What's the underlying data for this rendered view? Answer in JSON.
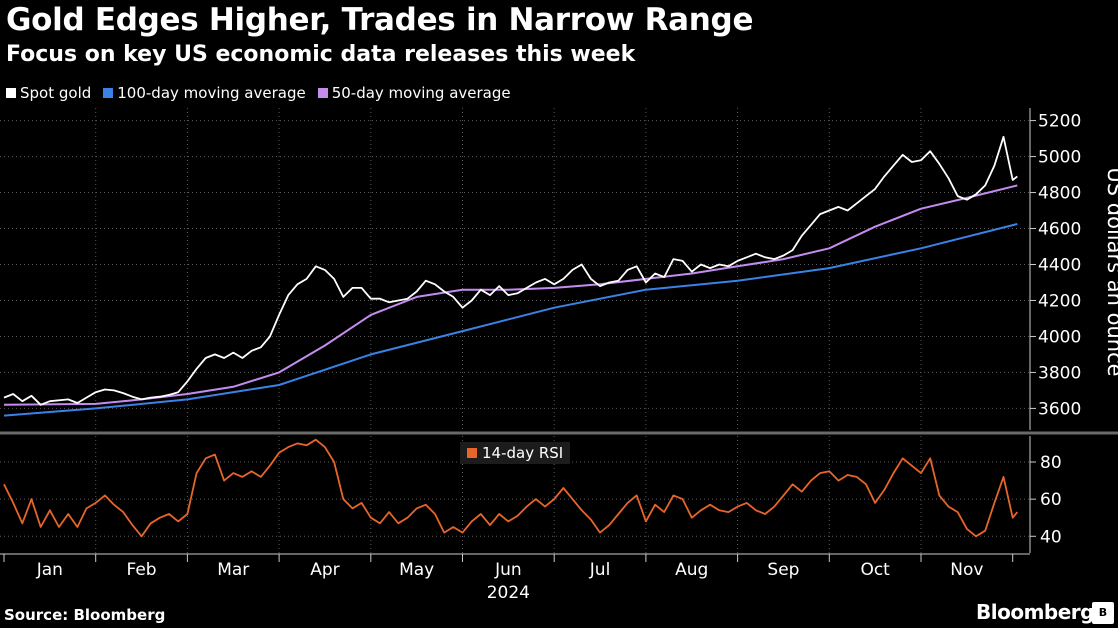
{
  "title": "Gold Edges Higher, Trades in Narrow Range",
  "subtitle": "Focus on key US economic data releases this week",
  "source": "Source: Bloomberg",
  "brand": "Bloomberg",
  "brand_mark": "B",
  "colors": {
    "spot": "#ffffff",
    "ma100": "#3b82e6",
    "ma50": "#c58cf0",
    "rsi": "#e8652a",
    "grid": "#5a5a5a",
    "divider": "#6a6a6a"
  },
  "chart_data": [
    {
      "type": "line",
      "ylabel": "US dollars an ounce",
      "ylim": [
        3480,
        5270
      ],
      "yticks": [
        3600,
        3800,
        4000,
        4200,
        4400,
        4600,
        4800,
        5000,
        5200
      ],
      "xlim": [
        0,
        11.05
      ],
      "xticks": [
        "Jan",
        "Feb",
        "Mar",
        "Apr",
        "May",
        "Jun",
        "Jul",
        "Aug",
        "Sep",
        "Oct",
        "Nov"
      ],
      "xlabel": "2024",
      "grid": true,
      "legend_position": "top-left",
      "series": [
        {
          "name": "Spot gold",
          "points": [
            [
              0.0,
              3660
            ],
            [
              0.1,
              3680
            ],
            [
              0.2,
              3640
            ],
            [
              0.3,
              3670
            ],
            [
              0.4,
              3620
            ],
            [
              0.5,
              3640
            ],
            [
              0.7,
              3650
            ],
            [
              0.8,
              3630
            ],
            [
              0.9,
              3660
            ],
            [
              1.0,
              3690
            ],
            [
              1.1,
              3705
            ],
            [
              1.2,
              3700
            ],
            [
              1.3,
              3685
            ],
            [
              1.4,
              3665
            ],
            [
              1.5,
              3650
            ],
            [
              1.6,
              3660
            ],
            [
              1.7,
              3665
            ],
            [
              1.8,
              3675
            ],
            [
              1.9,
              3690
            ],
            [
              2.0,
              3750
            ],
            [
              2.1,
              3820
            ],
            [
              2.2,
              3880
            ],
            [
              2.3,
              3900
            ],
            [
              2.4,
              3880
            ],
            [
              2.5,
              3910
            ],
            [
              2.6,
              3880
            ],
            [
              2.7,
              3920
            ],
            [
              2.8,
              3940
            ],
            [
              2.9,
              4000
            ],
            [
              3.0,
              4120
            ],
            [
              3.1,
              4230
            ],
            [
              3.2,
              4290
            ],
            [
              3.3,
              4320
            ],
            [
              3.4,
              4390
            ],
            [
              3.5,
              4370
            ],
            [
              3.6,
              4320
            ],
            [
              3.7,
              4220
            ],
            [
              3.8,
              4270
            ],
            [
              3.9,
              4270
            ],
            [
              4.0,
              4210
            ],
            [
              4.1,
              4210
            ],
            [
              4.2,
              4190
            ],
            [
              4.3,
              4200
            ],
            [
              4.4,
              4210
            ],
            [
              4.5,
              4250
            ],
            [
              4.6,
              4310
            ],
            [
              4.7,
              4290
            ],
            [
              4.8,
              4250
            ],
            [
              4.9,
              4220
            ],
            [
              5.0,
              4160
            ],
            [
              5.1,
              4200
            ],
            [
              5.2,
              4260
            ],
            [
              5.3,
              4230
            ],
            [
              5.4,
              4280
            ],
            [
              5.5,
              4230
            ],
            [
              5.6,
              4240
            ],
            [
              5.7,
              4270
            ],
            [
              5.8,
              4300
            ],
            [
              5.9,
              4320
            ],
            [
              6.0,
              4290
            ],
            [
              6.1,
              4320
            ],
            [
              6.2,
              4370
            ],
            [
              6.3,
              4400
            ],
            [
              6.4,
              4320
            ],
            [
              6.5,
              4280
            ],
            [
              6.6,
              4300
            ],
            [
              6.7,
              4310
            ],
            [
              6.8,
              4370
            ],
            [
              6.9,
              4390
            ],
            [
              7.0,
              4300
            ],
            [
              7.1,
              4350
            ],
            [
              7.2,
              4330
            ],
            [
              7.3,
              4430
            ],
            [
              7.4,
              4420
            ],
            [
              7.5,
              4360
            ],
            [
              7.6,
              4400
            ],
            [
              7.7,
              4380
            ],
            [
              7.8,
              4400
            ],
            [
              7.9,
              4390
            ],
            [
              8.0,
              4420
            ],
            [
              8.1,
              4440
            ],
            [
              8.2,
              4460
            ],
            [
              8.3,
              4440
            ],
            [
              8.4,
              4430
            ],
            [
              8.5,
              4450
            ],
            [
              8.6,
              4480
            ],
            [
              8.7,
              4560
            ],
            [
              8.8,
              4620
            ],
            [
              8.9,
              4680
            ],
            [
              9.0,
              4700
            ],
            [
              9.1,
              4720
            ],
            [
              9.2,
              4700
            ],
            [
              9.3,
              4740
            ],
            [
              9.4,
              4780
            ],
            [
              9.5,
              4820
            ],
            [
              9.6,
              4890
            ],
            [
              9.7,
              4950
            ],
            [
              9.8,
              5010
            ],
            [
              9.9,
              4970
            ],
            [
              10.0,
              4980
            ],
            [
              10.1,
              5030
            ],
            [
              10.2,
              4960
            ],
            [
              10.3,
              4880
            ],
            [
              10.4,
              4780
            ],
            [
              10.5,
              4760
            ],
            [
              10.6,
              4790
            ],
            [
              10.7,
              4840
            ],
            [
              10.8,
              4950
            ],
            [
              10.9,
              5110
            ],
            [
              11.0,
              4870
            ],
            [
              11.05,
              4890
            ]
          ]
        },
        {
          "name": "100-day moving average",
          "points": [
            [
              0.0,
              3560
            ],
            [
              1.0,
              3600
            ],
            [
              2.0,
              3650
            ],
            [
              3.0,
              3730
            ],
            [
              4.0,
              3900
            ],
            [
              5.0,
              4030
            ],
            [
              6.0,
              4160
            ],
            [
              7.0,
              4260
            ],
            [
              8.0,
              4310
            ],
            [
              9.0,
              4380
            ],
            [
              10.0,
              4490
            ],
            [
              11.05,
              4625
            ]
          ]
        },
        {
          "name": "50-day moving average",
          "points": [
            [
              0.0,
              3620
            ],
            [
              1.0,
              3625
            ],
            [
              1.5,
              3650
            ],
            [
              2.0,
              3680
            ],
            [
              2.5,
              3720
            ],
            [
              3.0,
              3800
            ],
            [
              3.5,
              3950
            ],
            [
              4.0,
              4120
            ],
            [
              4.5,
              4220
            ],
            [
              5.0,
              4260
            ],
            [
              5.5,
              4260
            ],
            [
              6.0,
              4270
            ],
            [
              6.5,
              4290
            ],
            [
              7.0,
              4320
            ],
            [
              7.5,
              4350
            ],
            [
              8.0,
              4390
            ],
            [
              8.5,
              4430
            ],
            [
              9.0,
              4490
            ],
            [
              9.5,
              4610
            ],
            [
              10.0,
              4710
            ],
            [
              10.5,
              4770
            ],
            [
              11.05,
              4840
            ]
          ]
        }
      ]
    },
    {
      "type": "line",
      "ylim": [
        31,
        94
      ],
      "yticks": [
        40,
        60,
        80
      ],
      "xlim": [
        0,
        11.05
      ],
      "grid": true,
      "legend_position": "top-center",
      "series": [
        {
          "name": "14-day RSI",
          "points": [
            [
              0.0,
              68
            ],
            [
              0.1,
              58
            ],
            [
              0.2,
              47
            ],
            [
              0.3,
              60
            ],
            [
              0.4,
              45
            ],
            [
              0.5,
              54
            ],
            [
              0.6,
              45
            ],
            [
              0.7,
              52
            ],
            [
              0.8,
              45
            ],
            [
              0.9,
              55
            ],
            [
              1.0,
              58
            ],
            [
              1.1,
              62
            ],
            [
              1.2,
              57
            ],
            [
              1.3,
              53
            ],
            [
              1.4,
              46
            ],
            [
              1.5,
              40
            ],
            [
              1.6,
              47
            ],
            [
              1.7,
              50
            ],
            [
              1.8,
              52
            ],
            [
              1.9,
              48
            ],
            [
              2.0,
              52
            ],
            [
              2.1,
              74
            ],
            [
              2.2,
              82
            ],
            [
              2.3,
              84
            ],
            [
              2.4,
              70
            ],
            [
              2.5,
              74
            ],
            [
              2.6,
              72
            ],
            [
              2.7,
              75
            ],
            [
              2.8,
              72
            ],
            [
              2.9,
              78
            ],
            [
              3.0,
              85
            ],
            [
              3.1,
              88
            ],
            [
              3.2,
              90
            ],
            [
              3.3,
              89
            ],
            [
              3.4,
              92
            ],
            [
              3.5,
              88
            ],
            [
              3.6,
              80
            ],
            [
              3.7,
              60
            ],
            [
              3.8,
              55
            ],
            [
              3.9,
              58
            ],
            [
              4.0,
              50
            ],
            [
              4.1,
              47
            ],
            [
              4.2,
              53
            ],
            [
              4.3,
              47
            ],
            [
              4.4,
              50
            ],
            [
              4.5,
              55
            ],
            [
              4.6,
              57
            ],
            [
              4.7,
              52
            ],
            [
              4.8,
              42
            ],
            [
              4.9,
              45
            ],
            [
              5.0,
              42
            ],
            [
              5.1,
              48
            ],
            [
              5.2,
              52
            ],
            [
              5.3,
              46
            ],
            [
              5.4,
              52
            ],
            [
              5.5,
              48
            ],
            [
              5.6,
              51
            ],
            [
              5.7,
              56
            ],
            [
              5.8,
              60
            ],
            [
              5.9,
              56
            ],
            [
              6.0,
              60
            ],
            [
              6.1,
              66
            ],
            [
              6.2,
              60
            ],
            [
              6.3,
              54
            ],
            [
              6.4,
              49
            ],
            [
              6.5,
              42
            ],
            [
              6.6,
              46
            ],
            [
              6.7,
              52
            ],
            [
              6.8,
              58
            ],
            [
              6.9,
              62
            ],
            [
              7.0,
              48
            ],
            [
              7.1,
              57
            ],
            [
              7.2,
              53
            ],
            [
              7.3,
              62
            ],
            [
              7.4,
              60
            ],
            [
              7.5,
              50
            ],
            [
              7.6,
              54
            ],
            [
              7.7,
              57
            ],
            [
              7.8,
              54
            ],
            [
              7.9,
              53
            ],
            [
              8.0,
              56
            ],
            [
              8.1,
              58
            ],
            [
              8.2,
              54
            ],
            [
              8.3,
              52
            ],
            [
              8.4,
              56
            ],
            [
              8.5,
              62
            ],
            [
              8.6,
              68
            ],
            [
              8.7,
              64
            ],
            [
              8.8,
              70
            ],
            [
              8.9,
              74
            ],
            [
              9.0,
              75
            ],
            [
              9.1,
              70
            ],
            [
              9.2,
              73
            ],
            [
              9.3,
              72
            ],
            [
              9.4,
              68
            ],
            [
              9.5,
              58
            ],
            [
              9.6,
              65
            ],
            [
              9.7,
              74
            ],
            [
              9.8,
              82
            ],
            [
              9.9,
              78
            ],
            [
              10.0,
              74
            ],
            [
              10.1,
              82
            ],
            [
              10.2,
              62
            ],
            [
              10.3,
              56
            ],
            [
              10.4,
              53
            ],
            [
              10.5,
              44
            ],
            [
              10.6,
              40
            ],
            [
              10.7,
              43
            ],
            [
              10.8,
              58
            ],
            [
              10.9,
              72
            ],
            [
              11.0,
              50
            ],
            [
              11.05,
              53
            ]
          ]
        }
      ]
    }
  ]
}
